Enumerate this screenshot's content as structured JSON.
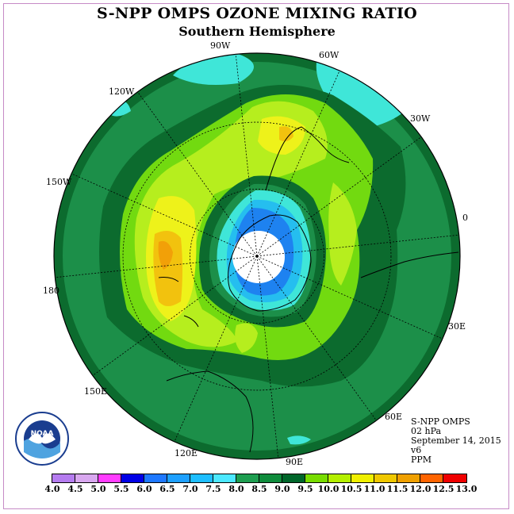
{
  "title": "S-NPP OMPS OZONE MIXING RATIO",
  "subtitle": "Southern Hemisphere",
  "longitude_labels": [
    "90W",
    "60W",
    "30W",
    "0",
    "30E",
    "60E",
    "90E",
    "120E",
    "150E",
    "180",
    "150W",
    "120W"
  ],
  "info": {
    "instrument": "S-NPP OMPS",
    "level": "02 hPa",
    "date": "September 14, 2015",
    "version": "v6",
    "unit": "PPM"
  },
  "logo": {
    "text": "NOAA",
    "icon": "noaa-logo-icon"
  },
  "colorbar": {
    "ticks": [
      "4.0",
      "4.5",
      "5.0",
      "5.5",
      "6.0",
      "6.5",
      "7.0",
      "7.5",
      "8.0",
      "8.5",
      "9.0",
      "9.5",
      "10.0",
      "10.5",
      "11.0",
      "11.5",
      "12.0",
      "12.5",
      "13.0"
    ],
    "colors": [
      "#b57cf0",
      "#d9a8f0",
      "#ff3cff",
      "#0000e6",
      "#1e78ff",
      "#1ea0ff",
      "#1ebeff",
      "#4ce8ff",
      "#1e9e50",
      "#0f8c3c",
      "#00662a",
      "#78dc00",
      "#b4f000",
      "#f0f000",
      "#f0c800",
      "#f0a000",
      "#ff6400",
      "#f00000",
      "#8c5028"
    ]
  },
  "map_colors": {
    "background": "#1c8f49",
    "outer_ring": "#0c6b2e",
    "bright_green": "#72da10",
    "yellow_green": "#b6ee1e",
    "yellow": "#eef21a",
    "gold": "#f2c20e",
    "orange": "#f2a008",
    "cyan": "#3fe6d8",
    "light_blue": "#25beef",
    "blue": "#1e82f0",
    "white": "#ffffff"
  }
}
